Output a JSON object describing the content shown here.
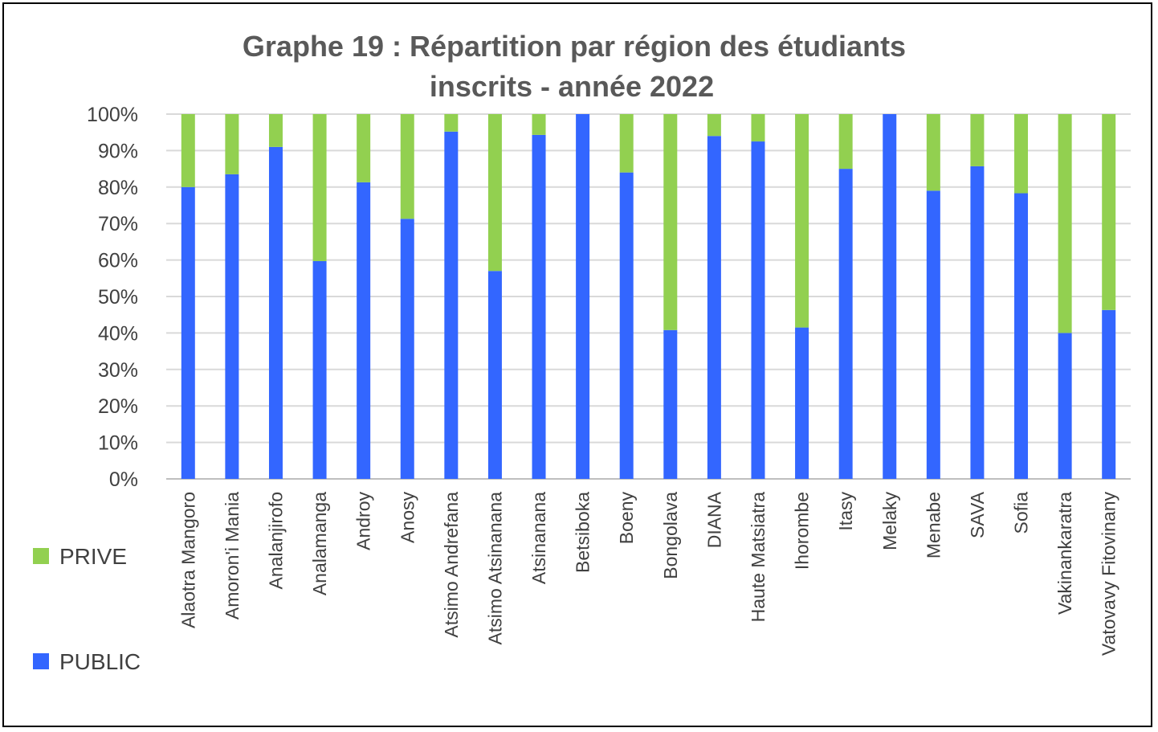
{
  "chart_data": {
    "type": "bar",
    "stacked": true,
    "title": "Graphe 19 : Répartition par région des étudiants inscrits - année 2022",
    "title_lines": [
      "Graphe 19 : Répartition par région des étudiants",
      "inscrits - année 2022"
    ],
    "xlabel": "",
    "ylabel": "",
    "ylim": [
      0,
      100
    ],
    "yticks": [
      "0%",
      "10%",
      "20%",
      "30%",
      "40%",
      "50%",
      "60%",
      "70%",
      "80%",
      "90%",
      "100%"
    ],
    "grid": true,
    "legend_position": "left",
    "categories": [
      "Alaotra Mangoro",
      "Amoron'i Mania",
      "Analanjirofo",
      "Analamanga",
      "Androy",
      "Anosy",
      "Atsimo Andrefana",
      "Atsimo Atsinanana",
      "Atsinanana",
      "Betsiboka",
      "Boeny",
      "Bongolava",
      "DIANA",
      "Haute Matsiatra",
      "Ihorombe",
      "Itasy",
      "Melaky",
      "Menabe",
      "SAVA",
      "Sofia",
      "Vakinankaratra",
      "Vatovavy Fitovinany"
    ],
    "series": [
      {
        "name": "PUBLIC",
        "color": "#3366ff",
        "values": [
          80,
          83.5,
          91,
          59.7,
          81.3,
          71.3,
          95.2,
          57,
          94.3,
          100,
          84,
          40.8,
          94,
          92.5,
          41.5,
          85,
          100,
          79,
          85.7,
          78.3,
          40,
          46.3
        ]
      },
      {
        "name": "PRIVE",
        "color": "#92d050",
        "values": [
          20,
          16.5,
          9,
          40.3,
          18.7,
          28.7,
          4.8,
          43,
          5.7,
          0,
          16,
          59.2,
          6,
          7.5,
          58.5,
          15,
          0,
          21,
          14.3,
          21.7,
          60,
          53.7
        ]
      }
    ],
    "legend": [
      {
        "name": "PRIVE",
        "color": "#92d050"
      },
      {
        "name": "PUBLIC",
        "color": "#3366ff"
      }
    ]
  }
}
